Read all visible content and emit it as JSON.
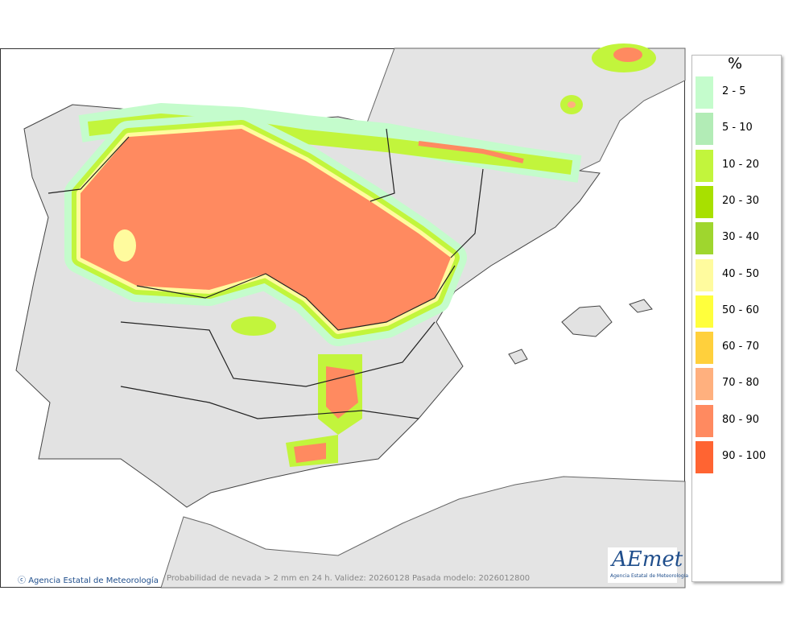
{
  "legend": {
    "title": "%",
    "items": [
      {
        "label": "2 - 5",
        "color": "#c4fccc"
      },
      {
        "label": "5 - 10",
        "color": "#b2ecb6"
      },
      {
        "label": "10 - 20",
        "color": "#c2f53c"
      },
      {
        "label": "20 - 30",
        "color": "#a8e000"
      },
      {
        "label": "30 - 40",
        "color": "#9fd62e"
      },
      {
        "label": "40 - 50",
        "color": "#fffb9e"
      },
      {
        "label": "50 - 60",
        "color": "#ffff3c"
      },
      {
        "label": "60 - 70",
        "color": "#ffd03c"
      },
      {
        "label": "70 - 80",
        "color": "#ffb07e"
      },
      {
        "label": "80 - 90",
        "color": "#ff8a60"
      },
      {
        "label": "90 - 100",
        "color": "#ff6432"
      }
    ]
  },
  "footer": {
    "credit": "Agencia Estatal de Meteorología",
    "caption": "Probabilidad de nevada > 2 mm en 24 h. Validez: 20260128 Pasada modelo: 2026012800"
  },
  "logo": {
    "name": "AEmet",
    "subtitle": "Agencia Estatal de Meteorología"
  }
}
